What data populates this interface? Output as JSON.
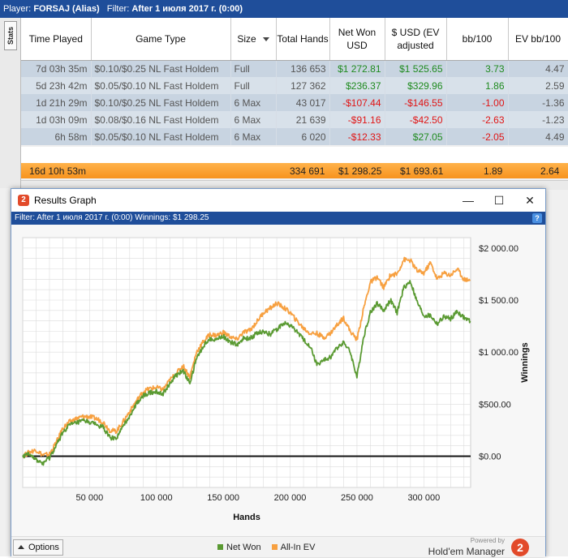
{
  "main": {
    "filter": {
      "player_label": "Player:",
      "player_value": "FORSAJ (Alias)",
      "filter_label": "Filter:",
      "filter_value": "After 1 июля 2017 г. (0:00)"
    },
    "side_tab": "Stats",
    "columns": [
      "Time Played",
      "Game Type",
      "Size",
      "Total Hands",
      "Net Won USD",
      "$ USD (EV adjusted",
      "bb/100",
      "EV bb/100"
    ],
    "rows": [
      {
        "time": "7d 03h 35m",
        "game": "$0.10/$0.25 NL Fast Holdem",
        "size": "Full",
        "hands": "136 653",
        "net": "$1 272.81",
        "ev_usd": "$1 525.65",
        "bb": "3.73",
        "evbb": "4.47"
      },
      {
        "time": "5d 23h 42m",
        "game": "$0.05/$0.10 NL Fast Holdem",
        "size": "Full",
        "hands": "127 362",
        "net": "$236.37",
        "ev_usd": "$329.96",
        "bb": "1.86",
        "evbb": "2.59"
      },
      {
        "time": "1d 21h 29m",
        "game": "$0.10/$0.25 NL Fast Holdem",
        "size": "6 Max",
        "hands": "43 017",
        "net": "-$107.44",
        "ev_usd": "-$146.55",
        "bb": "-1.00",
        "evbb": "-1.36"
      },
      {
        "time": "1d 03h 09m",
        "game": "$0.08/$0.16 NL Fast Holdem",
        "size": "6 Max",
        "hands": "21 639",
        "net": "-$91.16",
        "ev_usd": "-$42.50",
        "bb": "-2.63",
        "evbb": "-1.23"
      },
      {
        "time": "6h 58m",
        "game": "$0.05/$0.10 NL Fast Holdem",
        "size": "6 Max",
        "hands": "6 020",
        "net": "-$12.33",
        "ev_usd": "$27.05",
        "bb": "-2.05",
        "evbb": "4.49"
      }
    ],
    "total": {
      "time": "16d 10h 53m",
      "hands": "334 691",
      "net": "$1 298.25",
      "ev_usd": "$1 693.61",
      "bb": "1.89",
      "evbb": "2.64"
    }
  },
  "graph_window": {
    "title": "Results Graph",
    "icon_glyph": "2",
    "minimize": "—",
    "maximize": "☐",
    "close": "✕",
    "filter_text": "Filter: After 1 июля 2017 г. (0:00)  Winnings: $1 298.25",
    "help": "?",
    "options_label": "Options",
    "brand_powered": "Powered by",
    "brand_name": "Hold'em Manager",
    "brand_logo": "2",
    "colors": {
      "net_won": "#5a9a32",
      "all_in_ev": "#f7a040",
      "zero_line": "#111111",
      "grid": "#dcdcdc"
    }
  },
  "chart_data": {
    "type": "line",
    "xlabel": "Hands",
    "ylabel": "Winnings",
    "xlim": [
      0,
      335000
    ],
    "ylim": [
      -300,
      2100
    ],
    "x_ticks": [
      "50 000",
      "100 000",
      "150 000",
      "200 000",
      "250 000",
      "300 000"
    ],
    "x_tick_values": [
      50000,
      100000,
      150000,
      200000,
      250000,
      300000
    ],
    "y_ticks": [
      "$0.00",
      "$500.00",
      "$1 000.00",
      "$1 500.00",
      "$2 000.00"
    ],
    "y_tick_values": [
      0,
      500,
      1000,
      1500,
      2000
    ],
    "grid": true,
    "legend": "bottom-center",
    "x": [
      0,
      5000,
      10000,
      15000,
      20000,
      25000,
      30000,
      35000,
      40000,
      45000,
      50000,
      55000,
      60000,
      65000,
      70000,
      75000,
      80000,
      85000,
      90000,
      95000,
      100000,
      105000,
      110000,
      115000,
      120000,
      125000,
      130000,
      135000,
      140000,
      145000,
      150000,
      155000,
      160000,
      165000,
      170000,
      175000,
      180000,
      185000,
      190000,
      195000,
      200000,
      205000,
      210000,
      215000,
      220000,
      225000,
      230000,
      235000,
      240000,
      245000,
      250000,
      255000,
      260000,
      265000,
      270000,
      275000,
      280000,
      285000,
      290000,
      295000,
      300000,
      305000,
      310000,
      315000,
      320000,
      325000,
      330000,
      334691
    ],
    "series": [
      {
        "name": "Net Won",
        "values": [
          0,
          30,
          -40,
          -70,
          -20,
          100,
          230,
          300,
          320,
          340,
          330,
          300,
          280,
          180,
          170,
          280,
          390,
          500,
          580,
          610,
          620,
          600,
          700,
          780,
          820,
          700,
          940,
          1060,
          1130,
          1120,
          1150,
          1100,
          1070,
          1130,
          1130,
          1180,
          1200,
          1170,
          1220,
          1280,
          1260,
          1200,
          1120,
          1060,
          880,
          920,
          950,
          1040,
          1100,
          1000,
          760,
          1150,
          1380,
          1470,
          1400,
          1500,
          1380,
          1620,
          1680,
          1480,
          1350,
          1350,
          1270,
          1340,
          1320,
          1390,
          1330,
          1298
        ]
      },
      {
        "name": "All-In EV",
        "values": [
          0,
          40,
          60,
          10,
          20,
          130,
          270,
          330,
          360,
          380,
          380,
          360,
          330,
          250,
          240,
          330,
          430,
          530,
          620,
          650,
          660,
          640,
          730,
          800,
          870,
          760,
          1000,
          1100,
          1170,
          1160,
          1190,
          1150,
          1120,
          1190,
          1210,
          1290,
          1380,
          1420,
          1470,
          1430,
          1380,
          1300,
          1230,
          1180,
          1180,
          1140,
          1180,
          1260,
          1330,
          1200,
          1120,
          1420,
          1670,
          1720,
          1620,
          1740,
          1750,
          1890,
          1880,
          1780,
          1760,
          1860,
          1700,
          1760,
          1740,
          1800,
          1700,
          1694
        ]
      }
    ]
  }
}
